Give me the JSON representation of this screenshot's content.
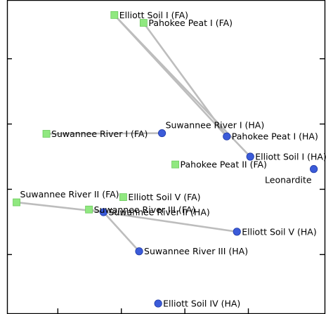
{
  "chart_data": {
    "type": "scatter",
    "title": "",
    "xlabel": "",
    "ylabel": "",
    "xlim": [
      -0.3,
      4.7
    ],
    "ylim": [
      -0.9,
      3.9
    ],
    "grid": false,
    "legend": "none",
    "x_ticks": [
      0.5,
      1.5,
      2.5,
      3.5
    ],
    "y_ticks": [
      0,
      1,
      2,
      3
    ],
    "colors": {
      "FA": "#90e880",
      "HA": "#3b5bd9",
      "HA_edge": "#1f3aa6",
      "connector": "#bdbdbd",
      "frame": "#000000"
    },
    "series": [
      {
        "group": "FA",
        "marker": "square",
        "points": [
          {
            "label": "Elliott Soil I (FA)",
            "x": 1.39,
            "y": 3.67,
            "label_side": "right"
          },
          {
            "label": "Pahokee Peat I (FA)",
            "x": 1.85,
            "y": 3.55,
            "label_side": "right"
          },
          {
            "label": "Suwannee River I (FA)",
            "x": 0.32,
            "y": 1.85,
            "label_side": "right"
          },
          {
            "label": "Pahokee Peat II (FA)",
            "x": 2.35,
            "y": 1.38,
            "label_side": "right"
          },
          {
            "label": "Elliott Soil V (FA)",
            "x": 1.53,
            "y": 0.88,
            "label_side": "right"
          },
          {
            "label": "Suwannee River II (FA)",
            "x": -0.15,
            "y": 0.8,
            "label_side": "above-right"
          },
          {
            "label": "Suwannee River III (FA)",
            "x": 0.99,
            "y": 0.69,
            "label_side": "right"
          }
        ]
      },
      {
        "group": "HA",
        "marker": "circle",
        "points": [
          {
            "label": "Suwannee River I (HA)",
            "x": 2.14,
            "y": 1.86,
            "label_side": "above-right"
          },
          {
            "label": "Pahokee Peat I (HA)",
            "x": 3.16,
            "y": 1.81,
            "label_side": "right"
          },
          {
            "label": "Elliott Soil I (HA)",
            "x": 3.53,
            "y": 1.5,
            "label_side": "right"
          },
          {
            "label": "Leonardite",
            "x": 4.53,
            "y": 1.31,
            "label_side": "below-left"
          },
          {
            "label": "Suwannee River II (HA)",
            "x": 1.22,
            "y": 0.65,
            "label_side": "right"
          },
          {
            "label": "Elliott Soil V (HA)",
            "x": 3.32,
            "y": 0.35,
            "label_side": "right"
          },
          {
            "label": "Suwannee River III (HA)",
            "x": 1.78,
            "y": 0.05,
            "label_side": "right"
          },
          {
            "label": "Elliott Soil IV (HA)",
            "x": 2.08,
            "y": -0.75,
            "label_side": "right"
          }
        ]
      }
    ],
    "connections": [
      [
        "Elliott Soil I (FA)",
        "Pahokee Peat I (HA)"
      ],
      [
        "Elliott Soil I (FA)",
        "Elliott Soil I (HA)"
      ],
      [
        "Pahokee Peat I (FA)",
        "Pahokee Peat I (HA)"
      ],
      [
        "Suwannee River I (FA)",
        "Suwannee River I (HA)"
      ],
      [
        "Suwannee River II (FA)",
        "Suwannee River II (HA)"
      ],
      [
        "Suwannee River III (FA)",
        "Suwannee River II (HA)"
      ],
      [
        "Suwannee River II (HA)",
        "Elliott Soil V (HA)"
      ],
      [
        "Suwannee River II (HA)",
        "Suwannee River III (HA)"
      ]
    ]
  }
}
